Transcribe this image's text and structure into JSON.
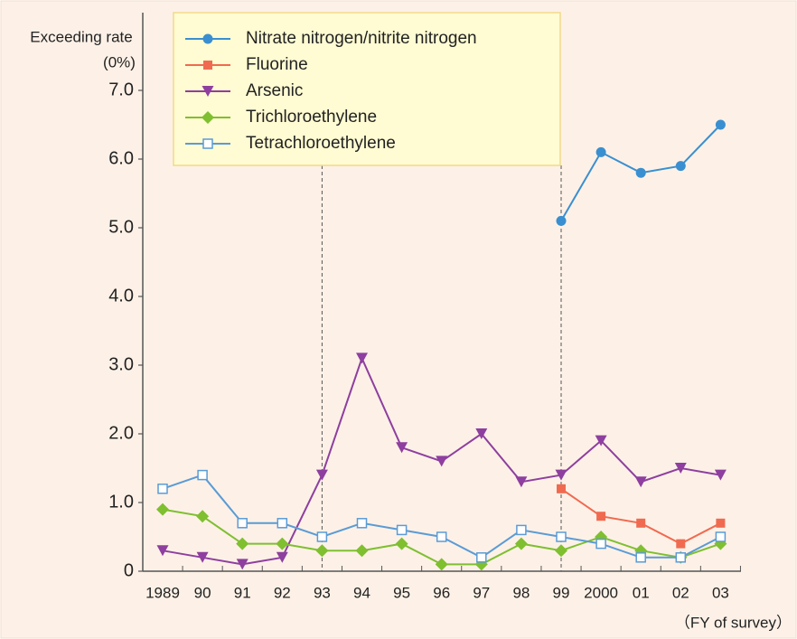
{
  "chart_data": {
    "type": "line",
    "y_label": "Exceeding rate",
    "y_unit": "(0%)",
    "x_label": "（FY of survey）",
    "categories": [
      "1989",
      "90",
      "91",
      "92",
      "93",
      "94",
      "95",
      "96",
      "97",
      "98",
      "99",
      "2000",
      "01",
      "02",
      "03"
    ],
    "ylim": [
      0,
      7
    ],
    "yticks": [
      0,
      {
        "value": 1,
        "label": "1.0"
      },
      {
        "value": 2,
        "label": "2.0"
      },
      {
        "value": 3,
        "label": "3.0"
      },
      {
        "value": 4,
        "label": "4.0"
      },
      {
        "value": 5,
        "label": "5.0"
      },
      {
        "value": 6,
        "label": "6.0"
      },
      {
        "value": 7,
        "label": "7.0"
      }
    ],
    "legend": "top",
    "series": [
      {
        "name": "Nitrate nitrogen/nitrite nitrogen",
        "color": "#3a8fd0",
        "marker": "circle",
        "values": [
          null,
          null,
          null,
          null,
          null,
          null,
          null,
          null,
          null,
          null,
          5.1,
          6.1,
          5.8,
          5.9,
          6.5
        ]
      },
      {
        "name": "Fluorine",
        "color": "#f06a50",
        "marker": "square",
        "values": [
          null,
          null,
          null,
          null,
          null,
          null,
          null,
          null,
          null,
          null,
          1.2,
          0.8,
          0.7,
          0.4,
          0.7
        ]
      },
      {
        "name": "Arsenic",
        "color": "#8e3f9f",
        "marker": "triangle-down",
        "values": [
          0.3,
          0.2,
          0.1,
          0.2,
          1.4,
          3.1,
          1.8,
          1.6,
          2.0,
          1.3,
          1.4,
          1.9,
          1.3,
          1.5,
          1.4
        ]
      },
      {
        "name": "Trichloroethylene",
        "color": "#7fbf30",
        "marker": "diamond",
        "values": [
          0.9,
          0.8,
          0.4,
          0.4,
          0.3,
          0.3,
          0.4,
          0.1,
          0.1,
          0.4,
          0.3,
          0.5,
          0.3,
          0.2,
          0.4
        ]
      },
      {
        "name": "Tetrachloroethylene",
        "color": "#5b9bd5",
        "marker": "open-square",
        "values": [
          1.2,
          1.4,
          0.7,
          0.7,
          0.5,
          0.7,
          0.6,
          0.5,
          0.2,
          0.6,
          0.5,
          0.4,
          0.2,
          0.2,
          0.5
        ]
      }
    ]
  }
}
